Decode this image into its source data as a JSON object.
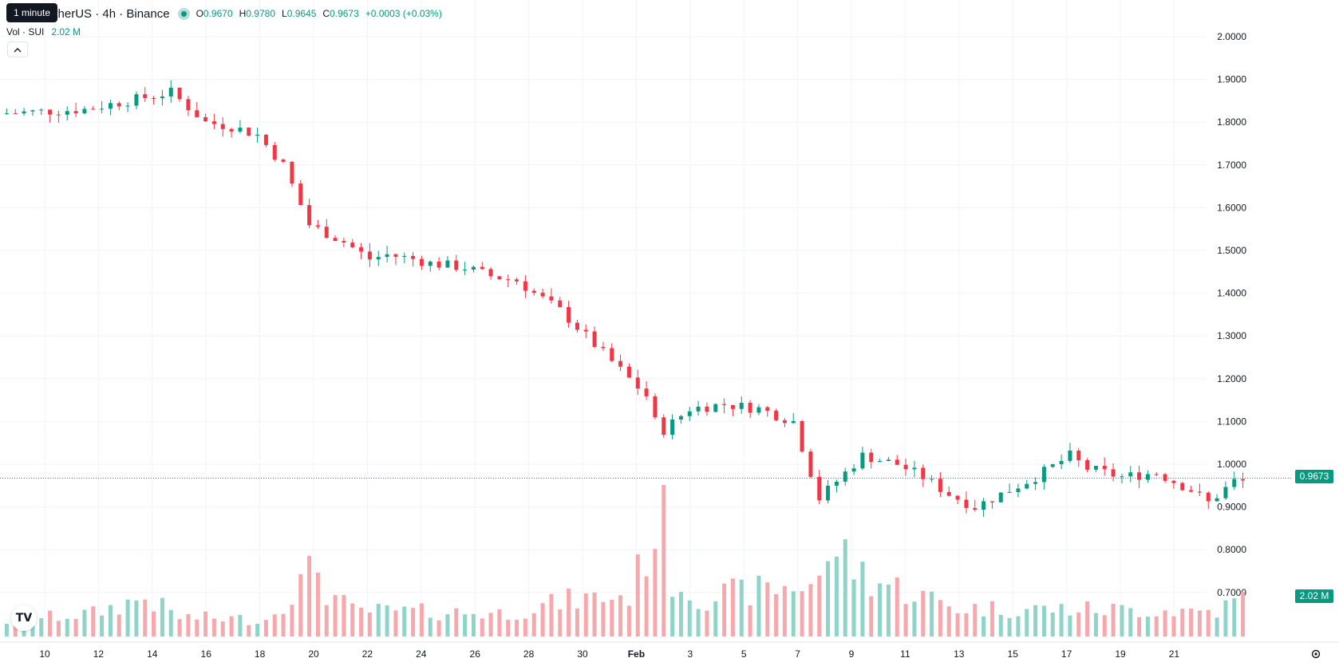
{
  "tooltip": "1 minute",
  "legend": {
    "symbol": "etherUS · 4h · Binance",
    "ohlc": [
      {
        "k": "O",
        "v": "0.9670"
      },
      {
        "k": "H",
        "v": "0.9780"
      },
      {
        "k": "L",
        "v": "0.9645"
      },
      {
        "k": "C",
        "v": "0.9673"
      }
    ],
    "change": "+0.0003 (+0.03%)"
  },
  "volume": {
    "label": "Vol · SUI",
    "value": "2.02 M"
  },
  "collapse_icon": "chevron-up-icon",
  "logo": "TV",
  "price_tag": "0.9673",
  "volume_tag": "2.02 M",
  "settings_icon": "gear-icon",
  "colors": {
    "up": "#089981",
    "down": "#f23645",
    "up_vol": "#90d3c9",
    "down_vol": "#f6a8ac",
    "grid": "#f0f3fa"
  },
  "chart_data": {
    "type": "candlestick",
    "y_axis": {
      "ticks": [
        "2.0000",
        "1.9000",
        "1.8000",
        "1.7000",
        "1.6000",
        "1.5000",
        "1.4000",
        "1.3000",
        "1.2000",
        "1.1000",
        "1.0000",
        "0.9000",
        "0.8000",
        "0.7000"
      ],
      "range": [
        0.69,
        2.02
      ]
    },
    "x_axis": {
      "ticks": [
        "10",
        "12",
        "14",
        "16",
        "18",
        "20",
        "22",
        "24",
        "26",
        "28",
        "30",
        "Feb",
        "3",
        "5",
        "7",
        "9",
        "11",
        "13",
        "15",
        "17",
        "19",
        "21"
      ]
    },
    "last_price": 0.9673,
    "price_path": [
      [
        0,
        1.82
      ],
      [
        10,
        1.83
      ],
      [
        15,
        1.85
      ],
      [
        20,
        1.87
      ],
      [
        24,
        1.8
      ],
      [
        27,
        1.79
      ],
      [
        30,
        1.77
      ],
      [
        33,
        1.7
      ],
      [
        36,
        1.56
      ],
      [
        40,
        1.52
      ],
      [
        43,
        1.48
      ],
      [
        45,
        1.49
      ],
      [
        48,
        1.48
      ],
      [
        50,
        1.47
      ],
      [
        54,
        1.46
      ],
      [
        57,
        1.44
      ],
      [
        60,
        1.43
      ],
      [
        62,
        1.4
      ],
      [
        65,
        1.36
      ],
      [
        68,
        1.3
      ],
      [
        72,
        1.22
      ],
      [
        75,
        1.16
      ],
      [
        76,
        1.1
      ],
      [
        77,
        1.08
      ],
      [
        80,
        1.13
      ],
      [
        84,
        1.14
      ],
      [
        88,
        1.13
      ],
      [
        92,
        1.1
      ],
      [
        93,
        1.04
      ],
      [
        95,
        0.92
      ],
      [
        97,
        0.96
      ],
      [
        100,
        1.02
      ],
      [
        104,
        1.0
      ],
      [
        107,
        0.97
      ],
      [
        110,
        0.93
      ],
      [
        113,
        0.9
      ],
      [
        116,
        0.93
      ],
      [
        120,
        0.97
      ],
      [
        124,
        1.02
      ],
      [
        126,
        0.99
      ],
      [
        130,
        0.97
      ],
      [
        134,
        0.98
      ],
      [
        138,
        0.94
      ],
      [
        140,
        0.91
      ],
      [
        143,
        0.96
      ]
    ],
    "volume_profile": [
      [
        0,
        0.12
      ],
      [
        10,
        0.18
      ],
      [
        16,
        0.3
      ],
      [
        20,
        0.15
      ],
      [
        30,
        0.13
      ],
      [
        36,
        0.55
      ],
      [
        37,
        0.35
      ],
      [
        40,
        0.2
      ],
      [
        58,
        0.18
      ],
      [
        65,
        0.28
      ],
      [
        72,
        0.32
      ],
      [
        76,
        1.0
      ],
      [
        77,
        0.45
      ],
      [
        80,
        0.3
      ],
      [
        92,
        0.4
      ],
      [
        95,
        0.5
      ],
      [
        96,
        0.75
      ],
      [
        97,
        0.6
      ],
      [
        100,
        0.45
      ],
      [
        110,
        0.22
      ],
      [
        140,
        0.2
      ],
      [
        143,
        0.3
      ]
    ]
  }
}
